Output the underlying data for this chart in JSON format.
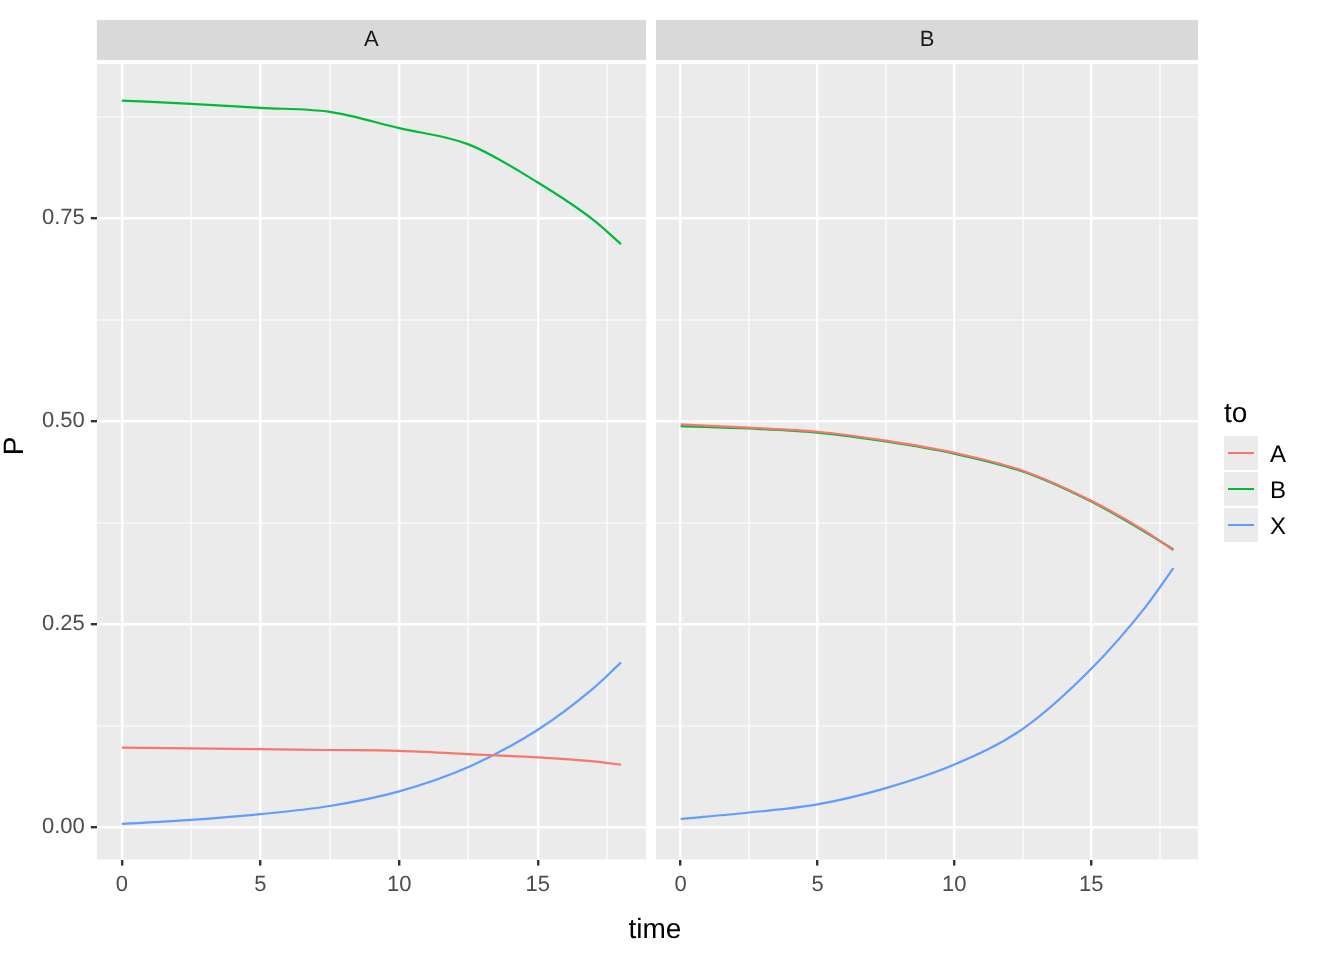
{
  "chart_data": [
    {
      "type": "line",
      "title": "A",
      "xlabel": "time",
      "ylabel": "P",
      "legend": "right",
      "legend_title": "to",
      "x": [
        0,
        2.5,
        5,
        7.5,
        10,
        12.5,
        15,
        17,
        18
      ],
      "series": [
        {
          "name": "A",
          "color": "#f8766d",
          "values": [
            0.098,
            0.097,
            0.096,
            0.095,
            0.094,
            0.09,
            0.086,
            0.081,
            0.077
          ]
        },
        {
          "name": "B",
          "color": "#00ba38",
          "values": [
            0.895,
            0.891,
            0.886,
            0.881,
            0.861,
            0.841,
            0.794,
            0.748,
            0.718
          ]
        },
        {
          "name": "X",
          "color": "#619cff",
          "values": [
            0.004,
            0.009,
            0.016,
            0.026,
            0.044,
            0.074,
            0.12,
            0.171,
            0.203
          ]
        }
      ],
      "xlim": [
        -0.9,
        18.9
      ],
      "ylim": [
        -0.04,
        0.94
      ],
      "xticks": [
        0,
        {
          "value": 2.5,
          "label": null
        },
        5,
        {
          "value": 7.5,
          "label": null
        },
        10,
        {
          "value": 12.5,
          "label": null
        },
        15,
        {
          "value": 17.5,
          "label": null
        }
      ],
      "yticks": [
        {
          "value": 0,
          "label": "0.00"
        },
        {
          "value": 0.125,
          "label": null
        },
        {
          "value": 0.25,
          "label": "0.25"
        },
        {
          "value": 0.375,
          "label": null
        },
        {
          "value": 0.5,
          "label": "0.50"
        },
        {
          "value": 0.625,
          "label": null
        },
        {
          "value": 0.75,
          "label": "0.75"
        },
        {
          "value": 0.875,
          "label": null
        }
      ],
      "grid": true
    },
    {
      "type": "line",
      "title": "B",
      "x": [
        0,
        2.5,
        5,
        7.5,
        10,
        12.5,
        15,
        17,
        18
      ],
      "series": [
        {
          "color": "#f8766d",
          "values": [
            0.496,
            0.492,
            0.487,
            0.476,
            0.461,
            0.439,
            0.402,
            0.364,
            0.341
          ]
        },
        {
          "color": "#00ba38",
          "values": [
            0.494,
            0.491,
            0.486,
            0.475,
            0.46,
            0.438,
            0.401,
            0.363,
            0.342
          ]
        },
        {
          "color": "#619cff",
          "values": [
            0.01,
            0.018,
            0.028,
            0.048,
            0.077,
            0.121,
            0.195,
            0.272,
            0.319
          ]
        }
      ],
      "xlim": [
        -0.9,
        18.9
      ],
      "ylim": [
        -0.04,
        0.94
      ],
      "xticks": [
        0,
        {
          "value": 2.5,
          "label": null
        },
        5,
        {
          "value": 7.5,
          "label": null
        },
        10,
        {
          "value": 12.5,
          "label": null
        },
        15,
        {
          "value": 17.5,
          "label": null
        }
      ],
      "tick_labels": "x",
      "grid": true
    }
  ]
}
